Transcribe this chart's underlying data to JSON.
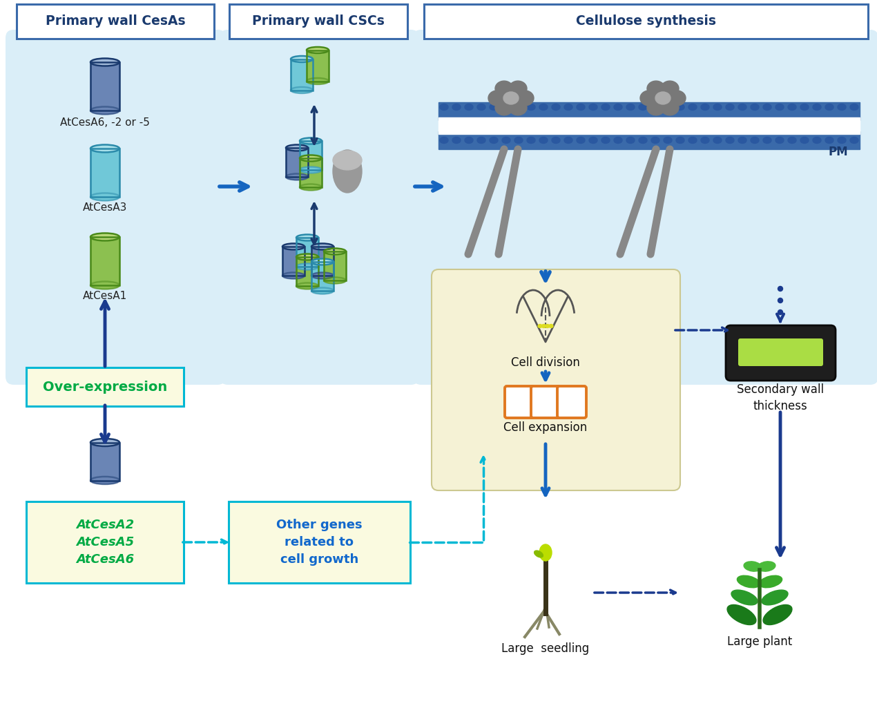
{
  "bg_color": "#ffffff",
  "light_blue_bg": "#daeef8",
  "light_yellow_bg": "#fafae0",
  "cyan_border": "#00b8d4",
  "dark_blue": "#1a3a6e",
  "blue_arrow": "#1565c0",
  "blue_arrow_dark": "#1a3a8e",
  "green_text": "#00aa44",
  "navy_cyl_body": "#6a85b5",
  "navy_cyl_top": "#a0b8d8",
  "navy_cyl_dark": "#1a3a6e",
  "teal_cyl_body": "#70c8d8",
  "teal_cyl_top": "#a8e0ea",
  "teal_cyl_dark": "#2a8aaa",
  "green_cyl_body": "#8cc050",
  "green_cyl_top": "#b8d878",
  "green_cyl_dark": "#4a8a1a",
  "gray_ov": "#888888",
  "orange_cell": "#e07820",
  "title1": "Primary wall CesAs",
  "title2": "Primary wall CSCs",
  "title3": "Cellulose synthesis",
  "label_cesa6": "AtCesA6, -2 or -5",
  "label_cesa3": "AtCesA3",
  "label_cesa1": "AtCesA1",
  "label_overexp": "Over-expression",
  "label_atcesa_box": "AtCesA2\nAtCesA5\nAtCesA6",
  "label_othergenes": "Other genes\nrelated to\ncell growth",
  "label_cell_division": "Cell division",
  "label_cell_expansion": "Cell expansion",
  "label_large_seedling": "Large  seedling",
  "label_large_plant": "Large plant",
  "label_secondary_wall": "Secondary wall\nthickness",
  "label_PM": "PM"
}
